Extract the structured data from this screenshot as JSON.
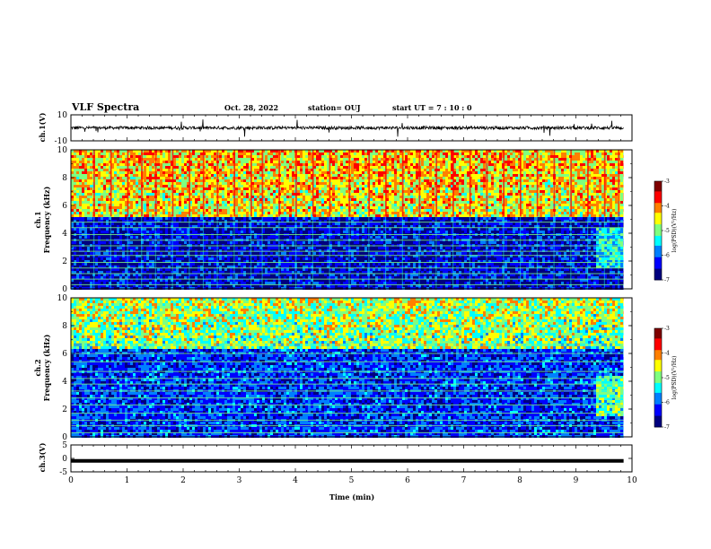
{
  "header": {
    "title": "VLF Spectra",
    "date": "Oct. 28, 2022",
    "station": "station= OUJ",
    "start": "start  UT  =   7 : 10 : 0"
  },
  "colorbar": {
    "label": "log(PSD)(V²/Hz)",
    "ticks": [
      "-3",
      "-4",
      "-5",
      "-6",
      "-7"
    ],
    "colors": [
      "#00007f",
      "#0000ff",
      "#007fff",
      "#00ffff",
      "#7fff7f",
      "#ffff00",
      "#ff7f00",
      "#ff0000",
      "#7f0000"
    ]
  },
  "chart_data": [
    {
      "type": "line",
      "name": "ch1-waveform",
      "ylabel": "ch.1(V)",
      "xlim": [
        0,
        10
      ],
      "ylim": [
        -10,
        10
      ],
      "ytick_labels": [
        "10",
        "-10"
      ],
      "signal_x_range_min": [
        0,
        9.85
      ],
      "baseline_v": 0.0,
      "noise_amplitude_v": 1.2,
      "spike_amplitude_v": 7.0
    },
    {
      "type": "heatmap",
      "name": "ch1-spectrogram",
      "ylabel_top": "ch.1",
      "ylabel": "Frequency (kHz)",
      "xlim": [
        0,
        10
      ],
      "ylim": [
        0,
        10
      ],
      "ytick_labels": [
        "10",
        "8",
        "6",
        "4",
        "2",
        "0"
      ],
      "zlim": [
        -7,
        -3
      ],
      "data_x_range_min": [
        0,
        9.85
      ],
      "background_level": -6.5,
      "upper_band_khz": [
        5.2,
        10
      ],
      "upper_band_level": -4.6,
      "sferic_times_min": [
        0.4,
        0.7,
        1.0,
        1.25,
        1.5,
        1.8,
        2.1,
        2.35,
        2.6,
        2.9,
        3.2,
        3.4,
        3.7,
        4.0,
        4.3,
        4.6,
        4.95,
        5.3,
        5.6,
        5.9,
        6.2,
        6.5,
        6.8,
        7.1,
        7.4,
        7.7,
        8.0,
        8.3,
        8.6,
        8.9,
        9.2,
        9.5,
        9.75
      ],
      "tone_khz": [
        0.3,
        0.7,
        1.1,
        1.5,
        1.9,
        2.4,
        2.7,
        3.1,
        3.5,
        3.9,
        4.4,
        4.8
      ],
      "changed_segment_start_min": 9.35
    },
    {
      "type": "heatmap",
      "name": "ch2-spectrogram",
      "ylabel_top": "ch.2",
      "ylabel": "Frequency (kHz)",
      "xlim": [
        0,
        10
      ],
      "ylim": [
        0,
        10
      ],
      "ytick_labels": [
        "10",
        "8",
        "6",
        "4",
        "2",
        "0"
      ],
      "zlim": [
        -7,
        -3
      ],
      "data_x_range_min": [
        0,
        9.85
      ],
      "background_level": -6.2,
      "upper_band_khz": [
        6.5,
        10
      ],
      "upper_band_level": -5.0,
      "tone_khz": [
        0.3,
        0.8,
        1.2,
        1.7,
        2.3,
        2.8,
        3.3,
        3.8,
        4.2,
        4.7,
        5.4,
        6.0,
        6.6
      ],
      "changed_segment_start_min": 9.35
    },
    {
      "type": "line",
      "name": "ch3-waveform",
      "ylabel": "ch.3(V)",
      "xlabel": "Time  (min)",
      "xlim": [
        0,
        10
      ],
      "ylim": [
        -5,
        5
      ],
      "ytick_labels": [
        "5",
        "0",
        "-5"
      ],
      "xtick_labels": [
        "0",
        "1",
        "2",
        "3",
        "4",
        "5",
        "6",
        "7",
        "8",
        "9",
        "10"
      ],
      "signal_x_range_min": [
        0,
        9.85
      ],
      "baseline_v": -0.9
    }
  ]
}
